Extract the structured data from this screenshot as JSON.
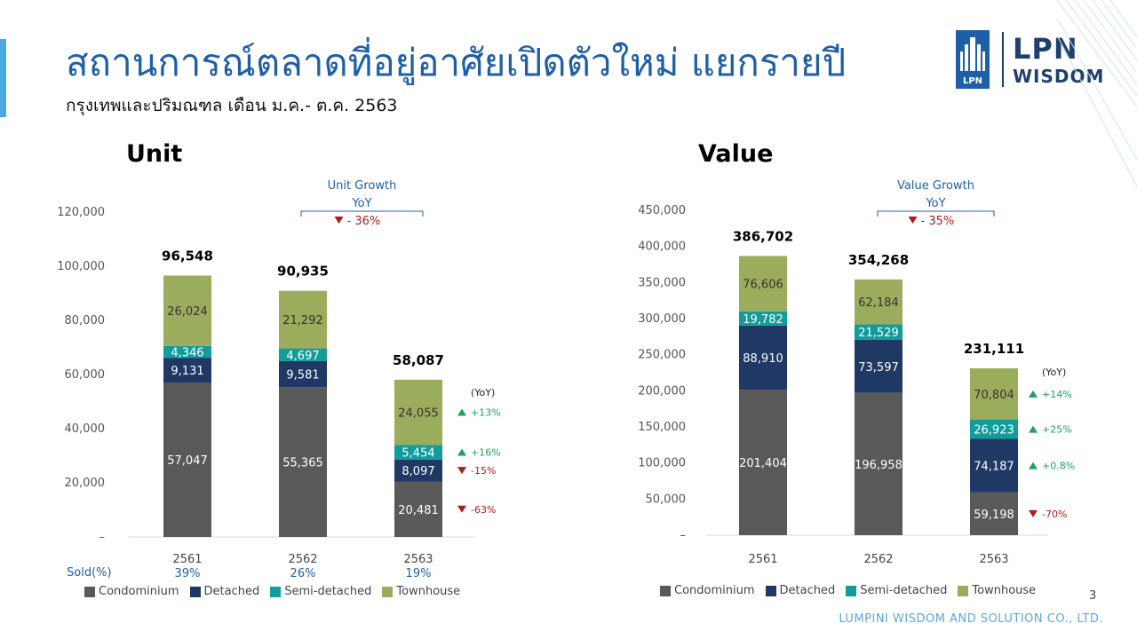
{
  "page": {
    "title": "สถานการณ์ตลาดที่อยู่อาศัยเปิดตัวใหม่ แยกรายปี",
    "subtitle": "กรุงเทพและปริมณฑล เดือน ม.ค.- ต.ค. 2563",
    "logo_main": "LPN",
    "logo_sub": "WISDOM",
    "logo_box": "LPN",
    "footer": "LUMPINI WISDOM AND SOLUTION CO., LTD.",
    "page_number": "3",
    "sold_label": "Sold(%)"
  },
  "colors": {
    "Condominium": "#595959",
    "Detached": "#1f3864",
    "Semi-detached": "#129c9c",
    "Townhouse": "#9bad5c",
    "up": "#1aa35a",
    "down": "#b01c1c",
    "accent": "#1f5fa8"
  },
  "chart_data": [
    {
      "type": "bar",
      "stacked": true,
      "title": "Unit",
      "categories": [
        "2561",
        "2562",
        "2563"
      ],
      "series": [
        {
          "name": "Condominium",
          "values": [
            57047,
            55365,
            20481
          ],
          "labels": [
            "57,047",
            "55,365",
            "20,481"
          ]
        },
        {
          "name": "Detached",
          "values": [
            9131,
            9581,
            8097
          ],
          "labels": [
            "9,131",
            "9,581",
            "8,097"
          ]
        },
        {
          "name": "Semi-detached",
          "values": [
            4346,
            4697,
            5454
          ],
          "labels": [
            "4,346",
            "4,697",
            "5,454"
          ]
        },
        {
          "name": "Townhouse",
          "values": [
            26024,
            21292,
            24055
          ],
          "labels": [
            "26,024",
            "21,292",
            "24,055"
          ]
        }
      ],
      "totals": [
        "96,548",
        "90,935",
        "58,087"
      ],
      "ylim": [
        0,
        120000
      ],
      "yticks": [
        "–",
        "20,000",
        "40,000",
        "60,000",
        "80,000",
        "100,000",
        "120,000"
      ],
      "sold_pct": [
        "39%",
        "26%",
        "19%"
      ],
      "growth": {
        "label1": "Unit Growth",
        "label2": "YoY",
        "value": "- 36%",
        "dir": "down"
      },
      "yoy_header": "(YoY)",
      "yoy": [
        {
          "series": "Condominium",
          "text": "-63%",
          "dir": "down"
        },
        {
          "series": "Detached",
          "text": "-15%",
          "dir": "down"
        },
        {
          "series": "Semi-detached",
          "text": "+16%",
          "dir": "up"
        },
        {
          "series": "Townhouse",
          "text": "+13%",
          "dir": "up"
        }
      ],
      "legend": [
        "Condominium",
        "Detached",
        "Semi-detached",
        "Townhouse"
      ]
    },
    {
      "type": "bar",
      "stacked": true,
      "title": "Value",
      "categories": [
        "2561",
        "2562",
        "2563"
      ],
      "series": [
        {
          "name": "Condominium",
          "values": [
            201404,
            196958,
            59198
          ],
          "labels": [
            "201,404",
            "196,958",
            "59,198"
          ]
        },
        {
          "name": "Detached",
          "values": [
            88910,
            73597,
            74187
          ],
          "labels": [
            "88,910",
            "73,597",
            "74,187"
          ]
        },
        {
          "name": "Semi-detached",
          "values": [
            19782,
            21529,
            26923
          ],
          "labels": [
            "19,782",
            "21,529",
            "26,923"
          ]
        },
        {
          "name": "Townhouse",
          "values": [
            76606,
            62184,
            70804
          ],
          "labels": [
            "76,606",
            "62,184",
            "70,804"
          ]
        }
      ],
      "totals": [
        "386,702",
        "354,268",
        "231,111"
      ],
      "ylim": [
        0,
        450000
      ],
      "yticks": [
        "–",
        "50,000",
        "100,000",
        "150,000",
        "200,000",
        "250,000",
        "300,000",
        "350,000",
        "400,000",
        "450,000"
      ],
      "growth": {
        "label1": "Value Growth",
        "label2": "YoY",
        "value": "- 35%",
        "dir": "down"
      },
      "yoy_header": "(YoY)",
      "yoy": [
        {
          "series": "Condominium",
          "text": "-70%",
          "dir": "down"
        },
        {
          "series": "Detached",
          "text": "+0.8%",
          "dir": "up"
        },
        {
          "series": "Semi-detached",
          "text": "+25%",
          "dir": "up"
        },
        {
          "series": "Townhouse",
          "text": "+14%",
          "dir": "up"
        }
      ],
      "legend": [
        "Condominium",
        "Detached",
        "Semi-detached",
        "Townhouse"
      ]
    }
  ]
}
